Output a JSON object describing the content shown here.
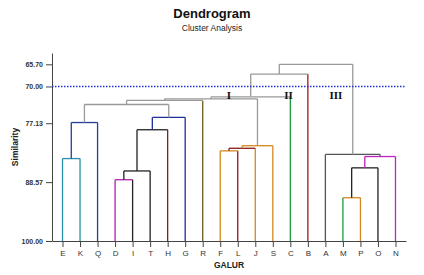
{
  "chart_data": {
    "type": "dendrogram",
    "title": "Dendrogram",
    "subtitle": "Cluster Analysis",
    "x_label": "GALUR",
    "y_label": "Similarity",
    "categories": [
      "E",
      "K",
      "Q",
      "D",
      "I",
      "T",
      "H",
      "G",
      "R",
      "F",
      "L",
      "J",
      "S",
      "C",
      "B",
      "A",
      "M",
      "P",
      "O",
      "N"
    ],
    "leaf_colors": [
      "#2a8fa8",
      "#2a8fa8",
      "#1f3f99",
      "#b020b0",
      "#222222",
      "#222222",
      "#7a2020",
      "#1f2f99",
      "#6b5a20",
      "#d4881f",
      "#8b1a1a",
      "#d4881f",
      "#d4881f",
      "#1a9a3a",
      "#a01818",
      "#555555",
      "#1a9a3a",
      "#d4881f",
      "#222222",
      "#c020c0"
    ],
    "ylim": [
      100,
      63.5
    ],
    "yticks": [
      {
        "value": 100,
        "label": "100.00"
      },
      88.57,
      77.13,
      {
        "value": 70,
        "label": "70.00"
      },
      {
        "value": 65.7,
        "label": "65.70"
      }
    ],
    "tree": {
      "similarity": 65.7,
      "color": "#999999",
      "children": [
        {
          "similarity": 67.6,
          "color": "#999999",
          "children": [
            {
              "similarity": 72.0,
              "color": "#999999",
              "children": [
                {
                  "similarity": 72.4,
                  "color": "#999999",
                  "children": [
                    {
                      "similarity": 72.7,
                      "color": "#999999",
                      "children": [
                        {
                          "similarity": 73.5,
                          "color": "#999999",
                          "children": [
                            {
                              "similarity": 77.0,
                              "color": "#1f3f99",
                              "children": [
                                {
                                  "similarity": 84.0,
                                  "color": "#2a8fa8",
                                  "children": [
                                    0,
                                    1
                                  ]
                                },
                                2
                              ]
                            },
                            {
                              "similarity": 76.0,
                              "color": "#1f2f99",
                              "children": [
                                {
                                  "similarity": 78.4,
                                  "color": "#222222",
                                  "children": [
                                    {
                                      "similarity": 86.4,
                                      "color": "#222222",
                                      "children": [
                                        {
                                          "similarity": 88.1,
                                          "color": "#b020b0",
                                          "children": [
                                            3,
                                            4
                                          ]
                                        },
                                        5
                                      ]
                                    },
                                    6
                                  ]
                                },
                                7
                              ]
                            }
                          ]
                        },
                        8
                      ]
                    },
                    {
                      "similarity": 81.5,
                      "color": "#d4881f",
                      "children": [
                        {
                          "similarity": 82.0,
                          "color": "#8b1a1a",
                          "children": [
                            {
                              "similarity": 82.5,
                              "color": "#d4881f",
                              "children": [
                                9,
                                10
                              ]
                            },
                            11
                          ]
                        },
                        12
                      ]
                    }
                  ]
                },
                13
              ]
            },
            14
          ]
        },
        {
          "similarity": 83.2,
          "color": "#555555",
          "children": [
            15,
            {
              "similarity": 83.6,
              "color": "#c020c0",
              "children": [
                {
                  "similarity": 85.8,
                  "color": "#222222",
                  "children": [
                    {
                      "similarity": 91.6,
                      "color": "#d4881f",
                      "children": [
                        16,
                        17
                      ]
                    },
                    18
                  ]
                },
                19
              ]
            }
          ]
        }
      ]
    },
    "reference_line": {
      "value": 70,
      "color": "#2233cc",
      "line_style": "dotted"
    },
    "annotations": [
      {
        "text": "I",
        "x": 9.5,
        "y": 71.9
      },
      {
        "text": "II",
        "x": 12.9,
        "y": 71.9
      },
      {
        "text": "III",
        "x": 15.6,
        "y": 71.9
      }
    ]
  }
}
